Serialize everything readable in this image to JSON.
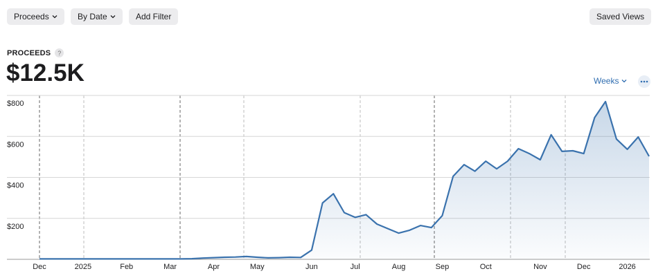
{
  "toolbar": {
    "buttons": [
      "Proceeds",
      "By Date",
      "Add Filter"
    ],
    "saved_views": "Saved Views"
  },
  "metric": {
    "label": "PROCEEDS",
    "help": "?",
    "total": "$12.5K"
  },
  "controls": {
    "period": "Weeks"
  },
  "chart_data": {
    "type": "area",
    "color": "#3a72ad",
    "grid": true,
    "categories": [
      "Dec",
      null,
      null,
      null,
      "2025",
      null,
      null,
      null,
      "Feb",
      null,
      null,
      null,
      "Mar",
      null,
      null,
      null,
      "Apr",
      null,
      null,
      null,
      "May",
      null,
      null,
      null,
      null,
      "Jun",
      null,
      null,
      null,
      "Jul",
      null,
      null,
      null,
      "Aug",
      null,
      null,
      null,
      "Sep",
      null,
      null,
      null,
      "Oct",
      null,
      null,
      null,
      null,
      "Nov",
      null,
      null,
      null,
      "Dec",
      null,
      null,
      null,
      "2026",
      null,
      null
    ],
    "values": [
      2,
      2,
      2,
      2,
      2,
      2,
      2,
      2,
      2,
      2,
      2,
      2,
      2,
      2,
      3,
      6,
      8,
      10,
      11,
      14,
      10,
      7,
      8,
      10,
      9,
      45,
      275,
      320,
      228,
      205,
      218,
      172,
      150,
      128,
      142,
      165,
      155,
      213,
      405,
      462,
      430,
      479,
      442,
      479,
      540,
      516,
      486,
      608,
      527,
      530,
      516,
      692,
      770,
      587,
      537,
      597,
      503
    ],
    "ylim": [
      0,
      800
    ],
    "yticks": [
      {
        "value": 200,
        "label": "$200"
      },
      {
        "value": 400,
        "label": "$400"
      },
      {
        "value": 600,
        "label": "$600"
      },
      {
        "value": 800,
        "label": "$800"
      }
    ]
  }
}
